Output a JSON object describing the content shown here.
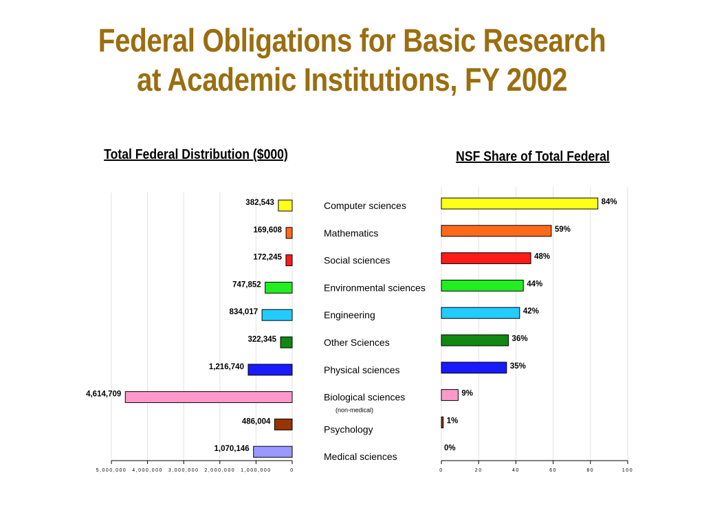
{
  "slide": {
    "title_line1": "Federal Obligations for Basic Research",
    "title_line2": "at Academic Institutions, FY 2002"
  },
  "colors": {
    "title": "#9a6e10"
  },
  "chart_data": [
    {
      "type": "bar",
      "orientation": "horizontal",
      "title": "Total Federal Distribution ($000)",
      "xlabel": "",
      "ylabel": "",
      "xlim": [
        0,
        5000000
      ],
      "x_reversed": true,
      "xticks": [
        0,
        1000000,
        2000000,
        3000000,
        4000000,
        5000000
      ],
      "xtick_labels": [
        "0",
        "1,000,000",
        "2,000,000",
        "3,000,000",
        "4,000,000",
        "5,000,000"
      ],
      "grid": true,
      "categories": [
        "Computer sciences",
        "Mathematics",
        "Social sciences",
        "Environmental sciences",
        "Engineering",
        "Other Sciences",
        "Physical sciences",
        "Biological sciences",
        "Psychology",
        "Medical sciences"
      ],
      "category_notes": [
        "",
        "",
        "",
        "",
        "",
        "",
        "",
        "(non-medical)",
        "",
        ""
      ],
      "values": [
        382543,
        169608,
        172245,
        747852,
        834017,
        322345,
        1216740,
        4614709,
        486004,
        1070146
      ],
      "data_labels": [
        "382,543",
        "169,608",
        "172,245",
        "747,852",
        "834,017",
        "322,345",
        "1,216,740",
        "4,614,709",
        "486,004",
        "1,070,146"
      ],
      "colors": [
        "#ffff1a",
        "#ff6a1a",
        "#ff1a1a",
        "#22ee22",
        "#22ccff",
        "#118811",
        "#1a1aff",
        "#ff99cc",
        "#993300",
        "#9999ff"
      ]
    },
    {
      "type": "bar",
      "orientation": "horizontal",
      "title": "NSF Share of Total Federal",
      "xlabel": "",
      "ylabel": "",
      "xlim": [
        0,
        100
      ],
      "xticks": [
        0,
        20,
        40,
        60,
        80,
        100
      ],
      "xtick_labels": [
        "0",
        "20",
        "40",
        "60",
        "80",
        "100"
      ],
      "grid": true,
      "categories": [
        "Computer sciences",
        "Mathematics",
        "Social sciences",
        "Environmental sciences",
        "Engineering",
        "Other Sciences",
        "Physical sciences",
        "Biological sciences",
        "Psychology",
        "Medical sciences"
      ],
      "values": [
        84,
        59,
        48,
        44,
        42,
        36,
        35,
        9,
        1,
        0
      ],
      "data_labels": [
        "84%",
        "59%",
        "48%",
        "44%",
        "42%",
        "36%",
        "35%",
        "9%",
        "1%",
        "0%"
      ],
      "colors": [
        "#ffff1a",
        "#ff6a1a",
        "#ff1a1a",
        "#22ee22",
        "#22ccff",
        "#118811",
        "#1a1aff",
        "#ff99cc",
        "#993300",
        "#9999ff"
      ]
    }
  ]
}
